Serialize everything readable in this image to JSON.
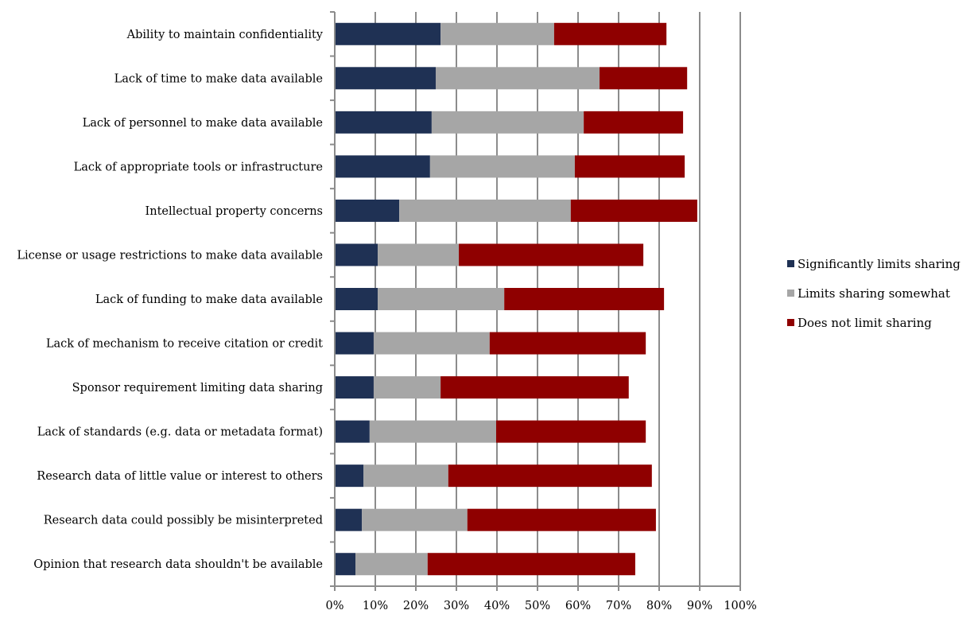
{
  "chart_data": {
    "type": "bar",
    "orientation": "horizontal",
    "stacked": true,
    "title": "",
    "xlabel": "",
    "ylabel": "",
    "xlim": [
      0,
      100
    ],
    "x_unit": "%",
    "x_ticks": [
      "0%",
      "10%",
      "20%",
      "30%",
      "40%",
      "50%",
      "60%",
      "70%",
      "80%",
      "90%",
      "100%"
    ],
    "grid": "vertical",
    "legend_position": "right",
    "categories": [
      "Ability to maintain confidentiality",
      "Lack of time to make data available",
      "Lack of personnel to make data available",
      "Lack of appropriate tools or infrastructure",
      "Intellectual property concerns",
      "License or usage restrictions to make data available",
      "Lack of funding to make data available",
      "Lack of mechanism to receive citation or credit",
      "Sponsor requirement limiting data sharing",
      "Lack of standards (e.g. data or metadata format)",
      "Research data of little value or interest to others",
      "Research data could possibly be misinterpreted",
      "Opinion that research data shouldn't be available"
    ],
    "series": [
      {
        "name": "Significantly limits sharing",
        "color": "#1f3154",
        "values": [
          26.1,
          24.9,
          23.9,
          23.5,
          15.9,
          10.6,
          10.6,
          9.6,
          9.6,
          8.6,
          7.1,
          6.7,
          5.1
        ]
      },
      {
        "name": "Limits sharing somewhat",
        "color": "#a6a6a6",
        "values": [
          28.0,
          40.4,
          37.5,
          35.7,
          42.3,
          20.0,
          31.2,
          28.6,
          16.5,
          31.2,
          20.9,
          26.0,
          17.8
        ]
      },
      {
        "name": "Does not limit sharing",
        "color": "#8f0000",
        "values": [
          27.7,
          21.6,
          24.5,
          27.1,
          31.2,
          45.5,
          39.4,
          38.5,
          46.4,
          36.9,
          50.2,
          46.5,
          51.2
        ]
      }
    ]
  }
}
